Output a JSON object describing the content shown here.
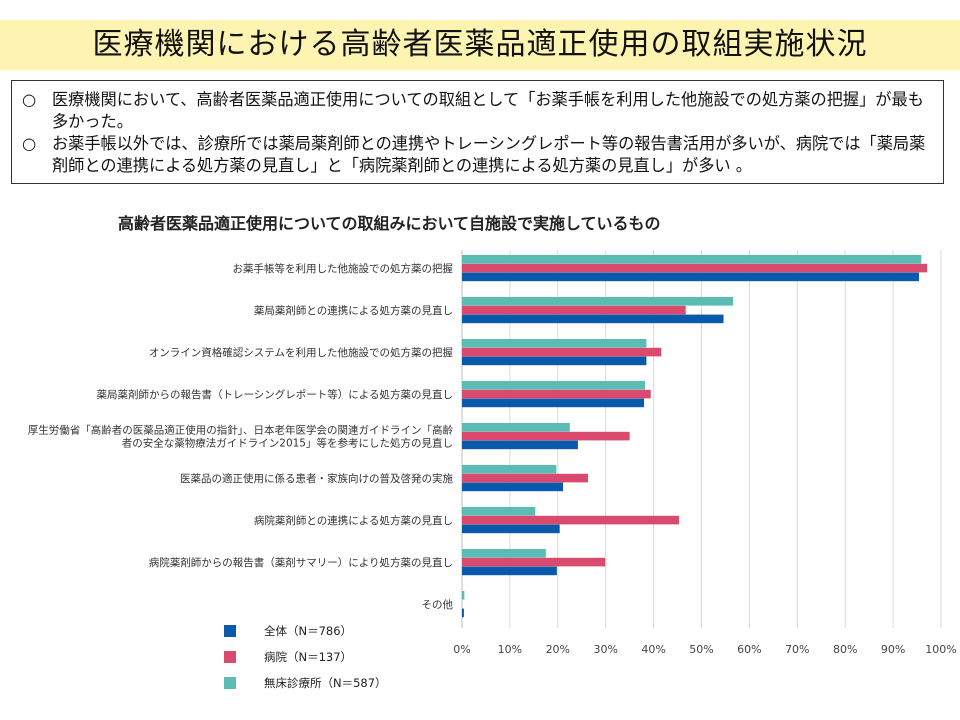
{
  "page": {
    "title": "医療機関における高齢者医薬品適正使用の取組実施状況",
    "summary": [
      {
        "mark": "○",
        "text": "医療機関において、高齢者医薬品適正使用についての取組として「お薬手帳を利用した他施設での処方薬の把握」が最も多かった。"
      },
      {
        "mark": "○",
        "text": "お薬手帳以外では、診療所では薬局薬剤師との連携やトレーシングレポート等の報告書活用が多いが、病院では「薬局薬剤師との連携による処方薬の見直し」と「病院薬剤師との連携による処方薬の見直し」が多い 。"
      }
    ]
  },
  "chart_data": {
    "type": "bar",
    "orientation": "horizontal",
    "title": "高齢者医薬品適正使用についての取組みにおいて自施設で実施しているもの",
    "categories": [
      [
        "お薬手帳等を利用した他施設での処方薬の把握"
      ],
      [
        "薬局薬剤師との連携による処方薬の見直し"
      ],
      [
        "オンライン資格確認システムを利用した他施設での処方薬の把握"
      ],
      [
        "薬局薬剤師からの報告書（トレーシングレポート等）による処方薬の見直し"
      ],
      [
        "厚生労働省「高齢者の医薬品適正使用の指針」、日本老年医学会の関連ガイドライン「高齢",
        "者の安全な薬物療法ガイドライン2015」等を参考にした処方の見直し"
      ],
      [
        "医薬品の適正使用に係る患者・家族向けの普及啓発の実施"
      ],
      [
        "病院薬剤師との連携による処方薬の見直し"
      ],
      [
        "病院薬剤師からの報告書（薬剤サマリー）により処方薬の見直し"
      ],
      [
        "その他"
      ]
    ],
    "series": [
      {
        "name": "無床診療所（N＝587）",
        "color": "#5bbcb4",
        "values": [
          95.9,
          56.6,
          38.5,
          38.2,
          22.5,
          19.7,
          15.3,
          17.5,
          0.5
        ]
      },
      {
        "name": "病院（N＝137）",
        "color": "#d94a6e",
        "values": [
          97.1,
          46.7,
          41.6,
          39.4,
          35.0,
          26.3,
          45.3,
          29.9,
          0
        ]
      },
      {
        "name": "全体（N＝786）",
        "color": "#0a5aab",
        "values": [
          95.4,
          54.6,
          38.5,
          38.0,
          24.2,
          21.1,
          20.4,
          19.8,
          0.4
        ]
      }
    ],
    "legend_order": [
      2,
      1,
      0
    ],
    "xlim": [
      0,
      100
    ],
    "ticks": [
      "0%",
      "10%",
      "20%",
      "30%",
      "40%",
      "50%",
      "60%",
      "70%",
      "80%",
      "90%",
      "100%"
    ],
    "grid": true,
    "legend": "bottom-left"
  }
}
